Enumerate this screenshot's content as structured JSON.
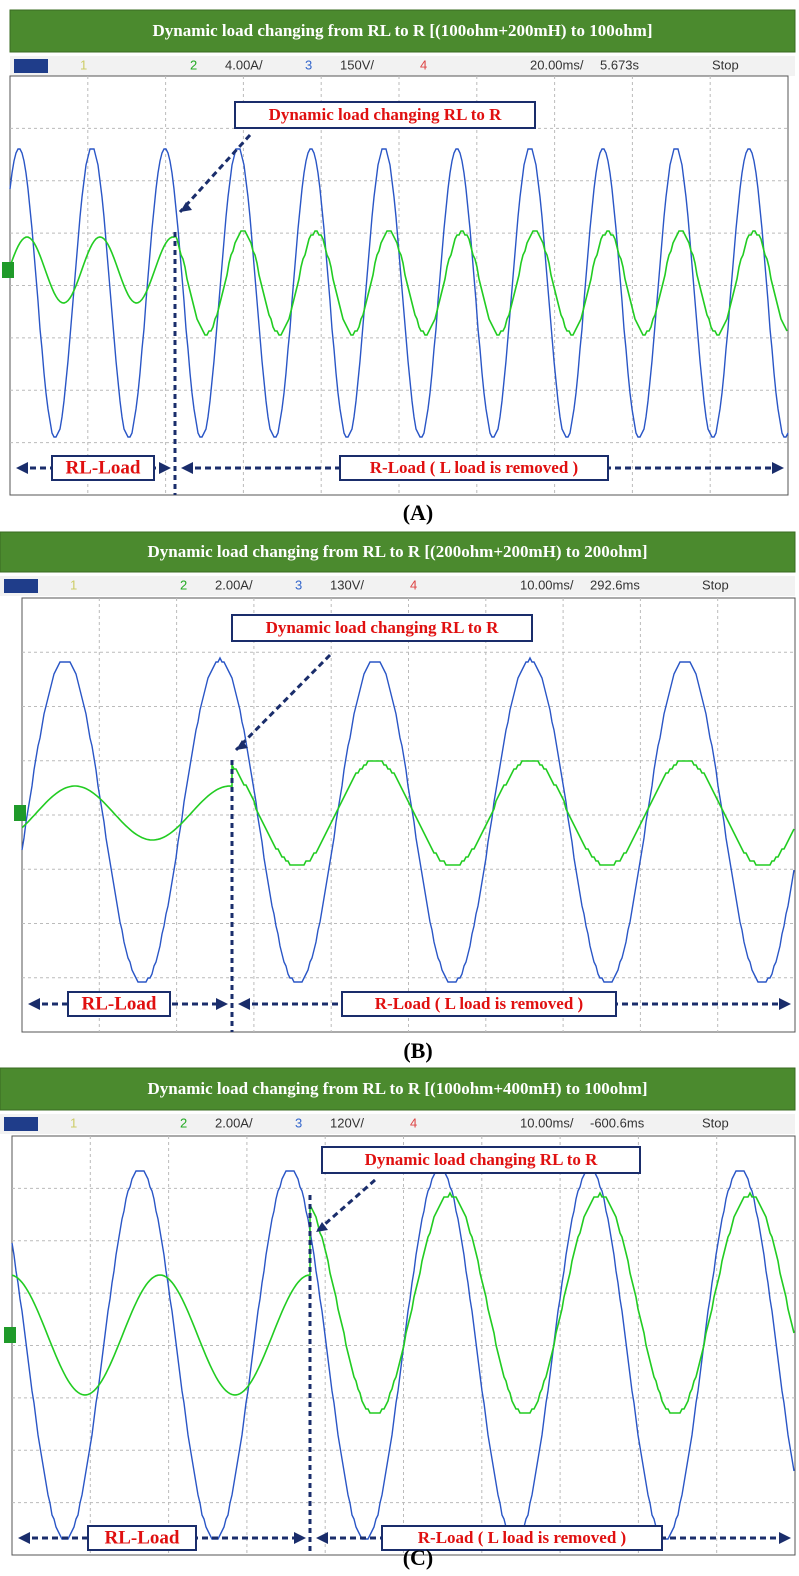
{
  "panels": [
    {
      "title": "Dynamic load changing from RL to R [(100ohm+200mH) to 100ohm]",
      "status": {
        "ch1": "1",
        "ch2": "2",
        "ch2_scale": "4.00A/",
        "ch3": "3",
        "ch3_scale": "150V/",
        "ch4": "4",
        "timebase": "20.00ms/",
        "time": "5.673s",
        "state": "Stop"
      },
      "annotation": "Dynamic load changing RL to R",
      "left_label": "RL-Load",
      "right_label": "R-Load ( L load is removed )",
      "caption": "(A)"
    },
    {
      "title": "Dynamic load changing from RL to R [(200ohm+200mH) to 200ohm]",
      "status": {
        "ch1": "1",
        "ch2": "2",
        "ch2_scale": "2.00A/",
        "ch3": "3",
        "ch3_scale": "130V/",
        "ch4": "4",
        "timebase": "10.00ms/",
        "time": "292.6ms",
        "state": "Stop"
      },
      "annotation": "Dynamic load changing RL to R",
      "left_label": "RL-Load",
      "right_label": "R-Load ( L load is removed )",
      "caption": "(B)"
    },
    {
      "title": "Dynamic load changing from RL to R [(100ohm+400mH) to 100ohm]",
      "status": {
        "ch1": "1",
        "ch2": "2",
        "ch2_scale": "2.00A/",
        "ch3": "3",
        "ch3_scale": "120V/",
        "ch4": "4",
        "timebase": "10.00ms/",
        "time": "-600.6ms",
        "state": "Stop"
      },
      "annotation": "Dynamic load changing RL to R",
      "left_label": "RL-Load",
      "right_label": "R-Load ( L load is removed )",
      "caption": "(C)"
    }
  ]
}
